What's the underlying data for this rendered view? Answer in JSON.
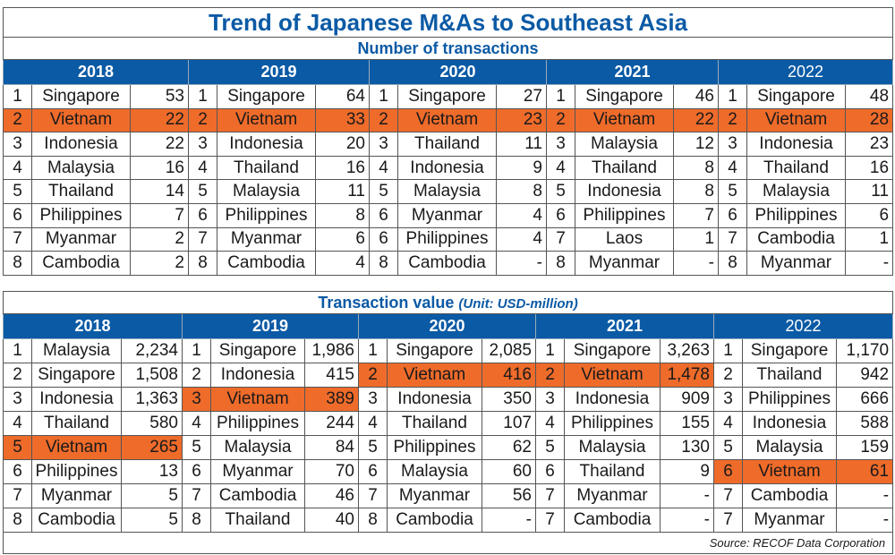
{
  "title": "Trend of Japanese M&As to Southeast Asia",
  "count_table": {
    "subtitle": "Number of transactions",
    "years": [
      "2018",
      "2019",
      "2020",
      "2021",
      "2022"
    ],
    "rows": [
      [
        [
          "1",
          "Singapore",
          "53"
        ],
        [
          "1",
          "Singapore",
          "64"
        ],
        [
          "1",
          "Singapore",
          "27"
        ],
        [
          "1",
          "Singapore",
          "46"
        ],
        [
          "1",
          "Singapore",
          "48"
        ]
      ],
      [
        [
          "2",
          "Vietnam",
          "22"
        ],
        [
          "2",
          "Vietnam",
          "33"
        ],
        [
          "2",
          "Vietnam",
          "23"
        ],
        [
          "2",
          "Vietnam",
          "22"
        ],
        [
          "2",
          "Vietnam",
          "28"
        ]
      ],
      [
        [
          "3",
          "Indonesia",
          "22"
        ],
        [
          "3",
          "Indonesia",
          "20"
        ],
        [
          "3",
          "Thailand",
          "11"
        ],
        [
          "3",
          "Malaysia",
          "12"
        ],
        [
          "3",
          "Indonesia",
          "23"
        ]
      ],
      [
        [
          "4",
          "Malaysia",
          "16"
        ],
        [
          "4",
          "Thailand",
          "16"
        ],
        [
          "4",
          "Indonesia",
          "9"
        ],
        [
          "4",
          "Thailand",
          "8"
        ],
        [
          "4",
          "Thailand",
          "16"
        ]
      ],
      [
        [
          "5",
          "Thailand",
          "14"
        ],
        [
          "5",
          "Malaysia",
          "11"
        ],
        [
          "5",
          "Malaysia",
          "8"
        ],
        [
          "5",
          "Indonesia",
          "8"
        ],
        [
          "5",
          "Malaysia",
          "11"
        ]
      ],
      [
        [
          "6",
          "Philippines",
          "7"
        ],
        [
          "6",
          "Philippines",
          "8"
        ],
        [
          "6",
          "Myanmar",
          "4"
        ],
        [
          "6",
          "Philippines",
          "7"
        ],
        [
          "6",
          "Philippines",
          "6"
        ]
      ],
      [
        [
          "7",
          "Myanmar",
          "2"
        ],
        [
          "7",
          "Myanmar",
          "6"
        ],
        [
          "6",
          "Philippines",
          "4"
        ],
        [
          "7",
          "Laos",
          "1"
        ],
        [
          "7",
          "Cambodia",
          "1"
        ]
      ],
      [
        [
          "8",
          "Cambodia",
          "2"
        ],
        [
          "8",
          "Cambodia",
          "4"
        ],
        [
          "8",
          "Cambodia",
          "-"
        ],
        [
          "8",
          "Myanmar",
          "-"
        ],
        [
          "8",
          "Myanmar",
          "-"
        ]
      ]
    ]
  },
  "value_table": {
    "subtitle": "Transaction value",
    "unit": "(Unit: USD-million)",
    "years": [
      "2018",
      "2019",
      "2020",
      "2021",
      "2022"
    ],
    "rows": [
      [
        [
          "1",
          "Malaysia",
          "2,234"
        ],
        [
          "1",
          "Singapore",
          "1,986"
        ],
        [
          "1",
          "Singapore",
          "2,085"
        ],
        [
          "1",
          "Singapore",
          "3,263"
        ],
        [
          "1",
          "Singapore",
          "1,170"
        ]
      ],
      [
        [
          "2",
          "Singapore",
          "1,508"
        ],
        [
          "2",
          "Indonesia",
          "415"
        ],
        [
          "2",
          "Vietnam",
          "416"
        ],
        [
          "2",
          "Vietnam",
          "1,478"
        ],
        [
          "2",
          "Thailand",
          "942"
        ]
      ],
      [
        [
          "3",
          "Indonesia",
          "1,363"
        ],
        [
          "3",
          "Vietnam",
          "389"
        ],
        [
          "3",
          "Indonesia",
          "350"
        ],
        [
          "3",
          "Indonesia",
          "909"
        ],
        [
          "3",
          "Philippines",
          "666"
        ]
      ],
      [
        [
          "4",
          "Thailand",
          "580"
        ],
        [
          "4",
          "Philippines",
          "244"
        ],
        [
          "4",
          "Thailand",
          "107"
        ],
        [
          "4",
          "Philippines",
          "155"
        ],
        [
          "4",
          "Indonesia",
          "588"
        ]
      ],
      [
        [
          "5",
          "Vietnam",
          "265"
        ],
        [
          "5",
          "Malaysia",
          "84"
        ],
        [
          "5",
          "Philippines",
          "62"
        ],
        [
          "5",
          "Malaysia",
          "130"
        ],
        [
          "5",
          "Malaysia",
          "159"
        ]
      ],
      [
        [
          "6",
          "Philippines",
          "13"
        ],
        [
          "6",
          "Myanmar",
          "70"
        ],
        [
          "6",
          "Malaysia",
          "60"
        ],
        [
          "6",
          "Thailand",
          "9"
        ],
        [
          "6",
          "Vietnam",
          "61"
        ]
      ],
      [
        [
          "7",
          "Myanmar",
          "5"
        ],
        [
          "7",
          "Cambodia",
          "46"
        ],
        [
          "7",
          "Myanmar",
          "56"
        ],
        [
          "7",
          "Myanmar",
          "-"
        ],
        [
          "7",
          "Cambodia",
          "-"
        ]
      ],
      [
        [
          "8",
          "Cambodia",
          "5"
        ],
        [
          "8",
          "Thailand",
          "40"
        ],
        [
          "8",
          "Cambodia",
          "-"
        ],
        [
          "7",
          "Cambodia",
          "-"
        ],
        [
          "7",
          "Myanmar",
          "-"
        ]
      ]
    ],
    "source": "Source: RECOF Data Corporation"
  },
  "colors": {
    "header": "#0b5aa5",
    "highlight": "#ef6b2a"
  }
}
